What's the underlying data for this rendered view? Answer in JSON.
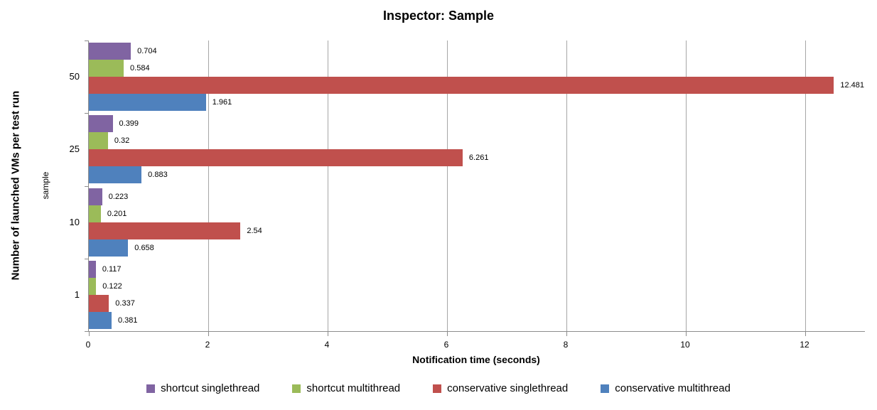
{
  "title": "Inspector: Sample",
  "chart_data": {
    "type": "bar",
    "orientation": "horizontal",
    "title": "Inspector: Sample",
    "xlabel": "Notification time (seconds)",
    "ylabel": "Number of launched VMs per test run",
    "ylabel_inner": "sample",
    "categories": [
      "50",
      "25",
      "10",
      "1"
    ],
    "series": [
      {
        "name": "shortcut singlethread",
        "color": "#8064A2",
        "values": [
          "0.704",
          "0.399",
          "0.223",
          "0.117"
        ]
      },
      {
        "name": "shortcut multithread",
        "color": "#9BBB59",
        "values": [
          "0.584",
          "0.32",
          "0.201",
          "0.122"
        ]
      },
      {
        "name": "conservative singlethread",
        "color": "#C0504D",
        "values": [
          "12.481",
          "6.261",
          "2.54",
          "0.337"
        ]
      },
      {
        "name": "conservative multithread",
        "color": "#4F81BD",
        "values": [
          "1.961",
          "0.883",
          "0.658",
          "0.381"
        ]
      }
    ],
    "xticks": [
      "0",
      "2",
      "4",
      "6",
      "8",
      "10",
      "12"
    ],
    "xlim": [
      0,
      13
    ],
    "grid": true,
    "legend_position": "bottom",
    "colors": {
      "gridline": "#a6a6a6",
      "axis_line": "#8c8c8c",
      "text": "#000000",
      "background": "#ffffff"
    }
  }
}
